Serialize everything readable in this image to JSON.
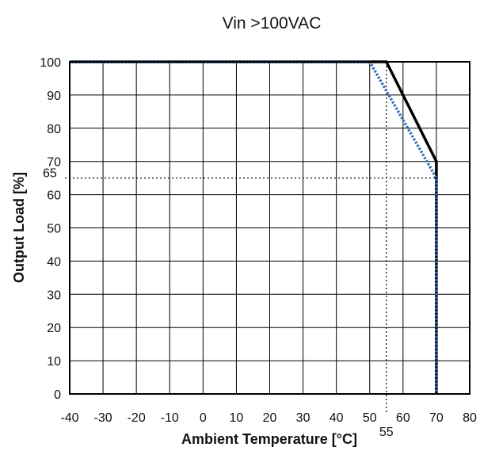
{
  "chart_data": {
    "type": "line",
    "title": "Vin >100VAC",
    "xlabel": "Ambient Temperature [°C]",
    "ylabel": "Output Load [%]",
    "xlim": [
      -40,
      80
    ],
    "ylim": [
      0,
      100
    ],
    "x_ticks": [
      -40,
      -30,
      -20,
      -10,
      0,
      10,
      20,
      30,
      40,
      50,
      60,
      70,
      80
    ],
    "y_ticks": [
      0,
      10,
      20,
      30,
      40,
      50,
      60,
      70,
      80,
      90,
      100
    ],
    "x_tick_labels": [
      "-40",
      "-30",
      "-20",
      "-10",
      "0",
      "10",
      "20",
      "30",
      "40",
      "50",
      "60",
      "70",
      "80"
    ],
    "y_tick_labels": [
      "0",
      "10",
      "20",
      "30",
      "40",
      "50",
      "60",
      "70",
      "80",
      "90",
      "100"
    ],
    "grid": true,
    "legend": "none",
    "series": [
      {
        "style": "solid",
        "color": "#000000",
        "points": [
          [
            -40,
            100
          ],
          [
            55,
            100
          ],
          [
            70,
            70
          ],
          [
            70,
            0
          ]
        ]
      },
      {
        "style": "dotted",
        "color": "#2f6db5",
        "points": [
          [
            -40,
            100
          ],
          [
            50,
            100
          ],
          [
            70,
            65
          ],
          [
            70,
            0
          ]
        ]
      }
    ],
    "annotations": [
      {
        "kind": "hline",
        "value": 65,
        "x_from": -40,
        "x_to": 70,
        "label": "65"
      },
      {
        "kind": "vline",
        "value": 55,
        "y_from": 0,
        "y_to": 100,
        "label": "55"
      }
    ]
  }
}
